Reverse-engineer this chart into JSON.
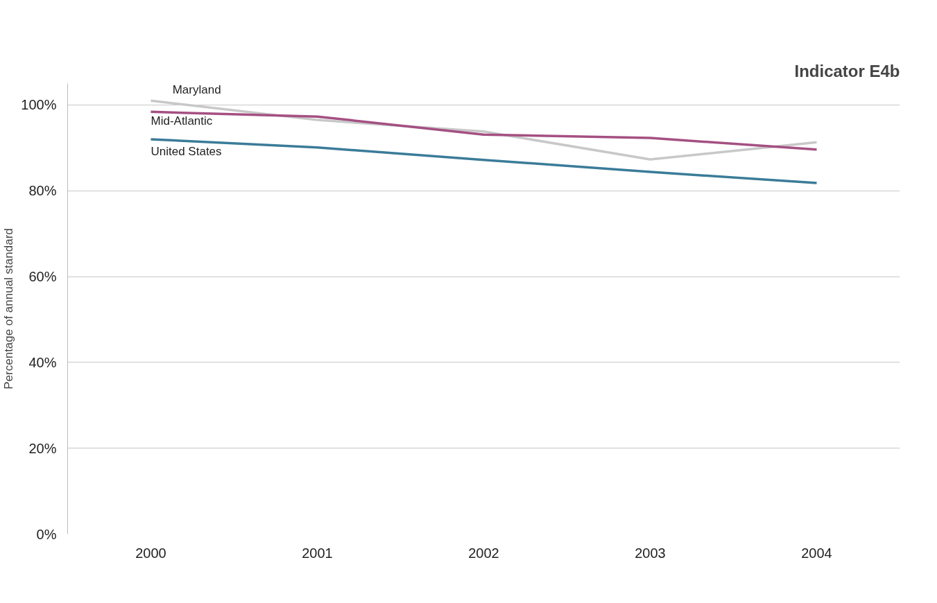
{
  "chart_data": {
    "type": "line",
    "title": "Indicator E4b",
    "ylabel": "Percentage of annual standard",
    "categories": [
      "2000",
      "2001",
      "2002",
      "2003",
      "2004"
    ],
    "series": [
      {
        "name": "Maryland",
        "color": "#c8c8c8",
        "values": [
          101.0,
          96.5,
          93.8,
          87.3,
          91.3
        ]
      },
      {
        "name": "Mid-Atlantic",
        "color": "#a45082",
        "values": [
          98.4,
          97.3,
          93.1,
          92.3,
          89.6
        ]
      },
      {
        "name": "United States",
        "color": "#3a7c98",
        "values": [
          92.0,
          90.1,
          87.2,
          84.4,
          81.8
        ]
      }
    ],
    "ylim": [
      0,
      105
    ],
    "yticks": [
      {
        "value": 0,
        "label": "0%"
      },
      {
        "value": 20,
        "label": "20%"
      },
      {
        "value": 40,
        "label": "40%"
      },
      {
        "value": 60,
        "label": "60%"
      },
      {
        "value": 80,
        "label": "80%"
      },
      {
        "value": 100,
        "label": "100%"
      }
    ],
    "grid": "y",
    "marker": "none",
    "line_style": "solid"
  }
}
